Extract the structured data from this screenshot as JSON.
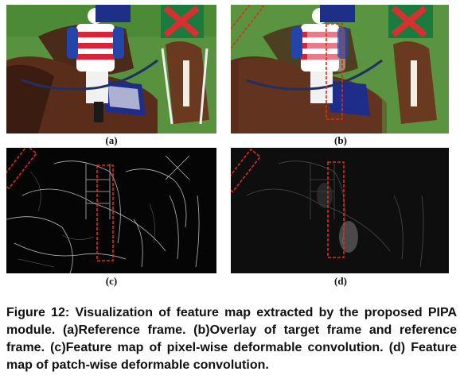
{
  "figure": {
    "panels": [
      {
        "id": "a",
        "label": "(a)",
        "kind": "photo",
        "boxes": false
      },
      {
        "id": "b",
        "label": "(b)",
        "kind": "photo",
        "boxes": true
      },
      {
        "id": "c",
        "label": "(c)",
        "kind": "feature-map",
        "boxes": true
      },
      {
        "id": "d",
        "label": "(d)",
        "kind": "feature-map",
        "boxes": true
      }
    ],
    "box_color": "#e02a1c",
    "caption": "Figure 12: Visualization of feature map extracted by the proposed PIPA module. (a)Reference frame. (b)Overlay of target frame and reference frame. (c)Feature map of pixel-wise deformable convolution. (d) Feature map of patch-wise deformable convolution."
  }
}
